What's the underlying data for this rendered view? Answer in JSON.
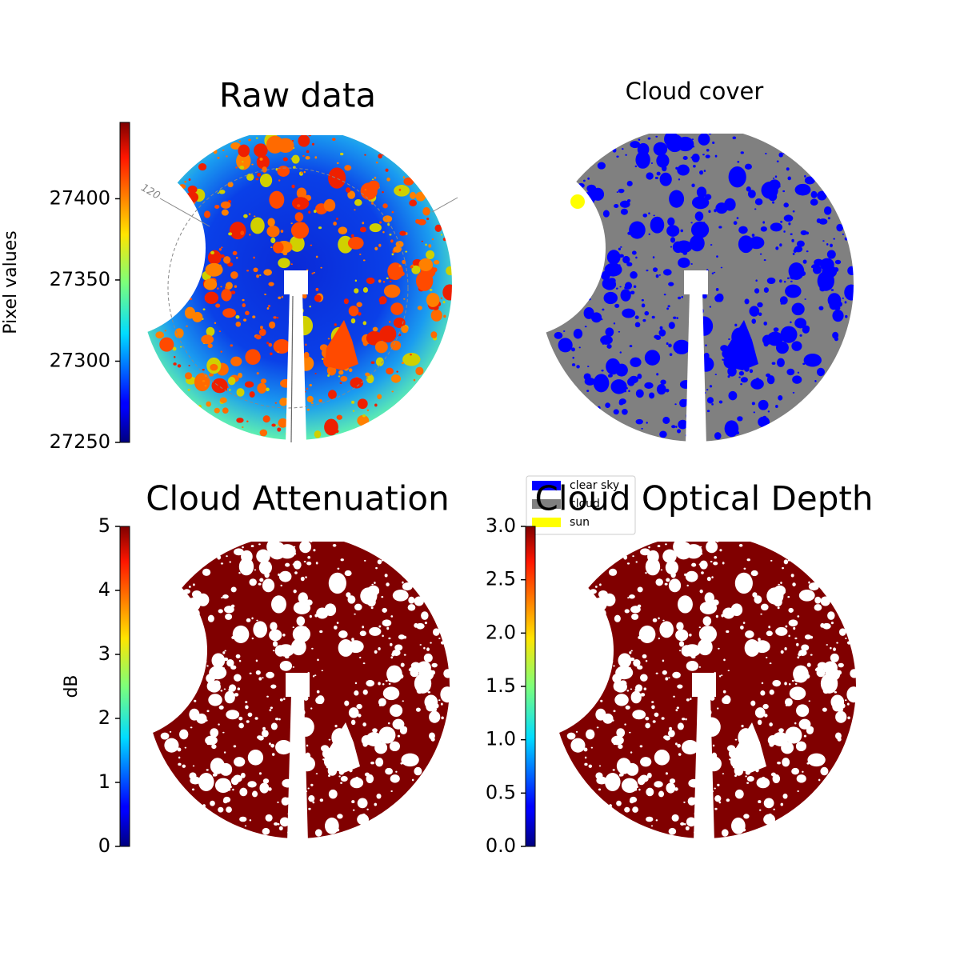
{
  "chart_data": [
    {
      "type": "image",
      "title": "Raw data",
      "ylabel": "Pixel values",
      "colormap": "jet",
      "ylim": [
        27250,
        27447
      ],
      "yticks": [
        27250,
        27300,
        27350,
        27400
      ],
      "annotations": [
        "120"
      ]
    },
    {
      "type": "image",
      "title": "Cloud cover",
      "legend": {
        "labels": [
          "clear sky",
          "cloud",
          "sun"
        ],
        "colors": [
          "#0000ff",
          "#808080",
          "#ffff00"
        ]
      }
    },
    {
      "type": "image",
      "title": "Cloud Attenuation",
      "ylabel": "dB",
      "colormap": "jet",
      "color": "#800000",
      "ylim": [
        0,
        5
      ],
      "yticks": [
        0,
        1,
        2,
        3,
        4,
        5
      ]
    },
    {
      "type": "image",
      "title": "Cloud Optical Depth",
      "colormap": "jet",
      "color": "#800000",
      "ylim": [
        0,
        3
      ],
      "yticks": [
        {
          "value": 0,
          "label": "0.0"
        },
        {
          "value": 0.5,
          "label": "0.5"
        },
        {
          "value": 1,
          "label": "1.0"
        },
        {
          "value": 1.5,
          "label": "1.5"
        },
        {
          "value": 2,
          "label": "2.0"
        },
        {
          "value": 2.5,
          "label": "2.5"
        },
        {
          "value": 3,
          "label": "3.0"
        }
      ]
    }
  ]
}
